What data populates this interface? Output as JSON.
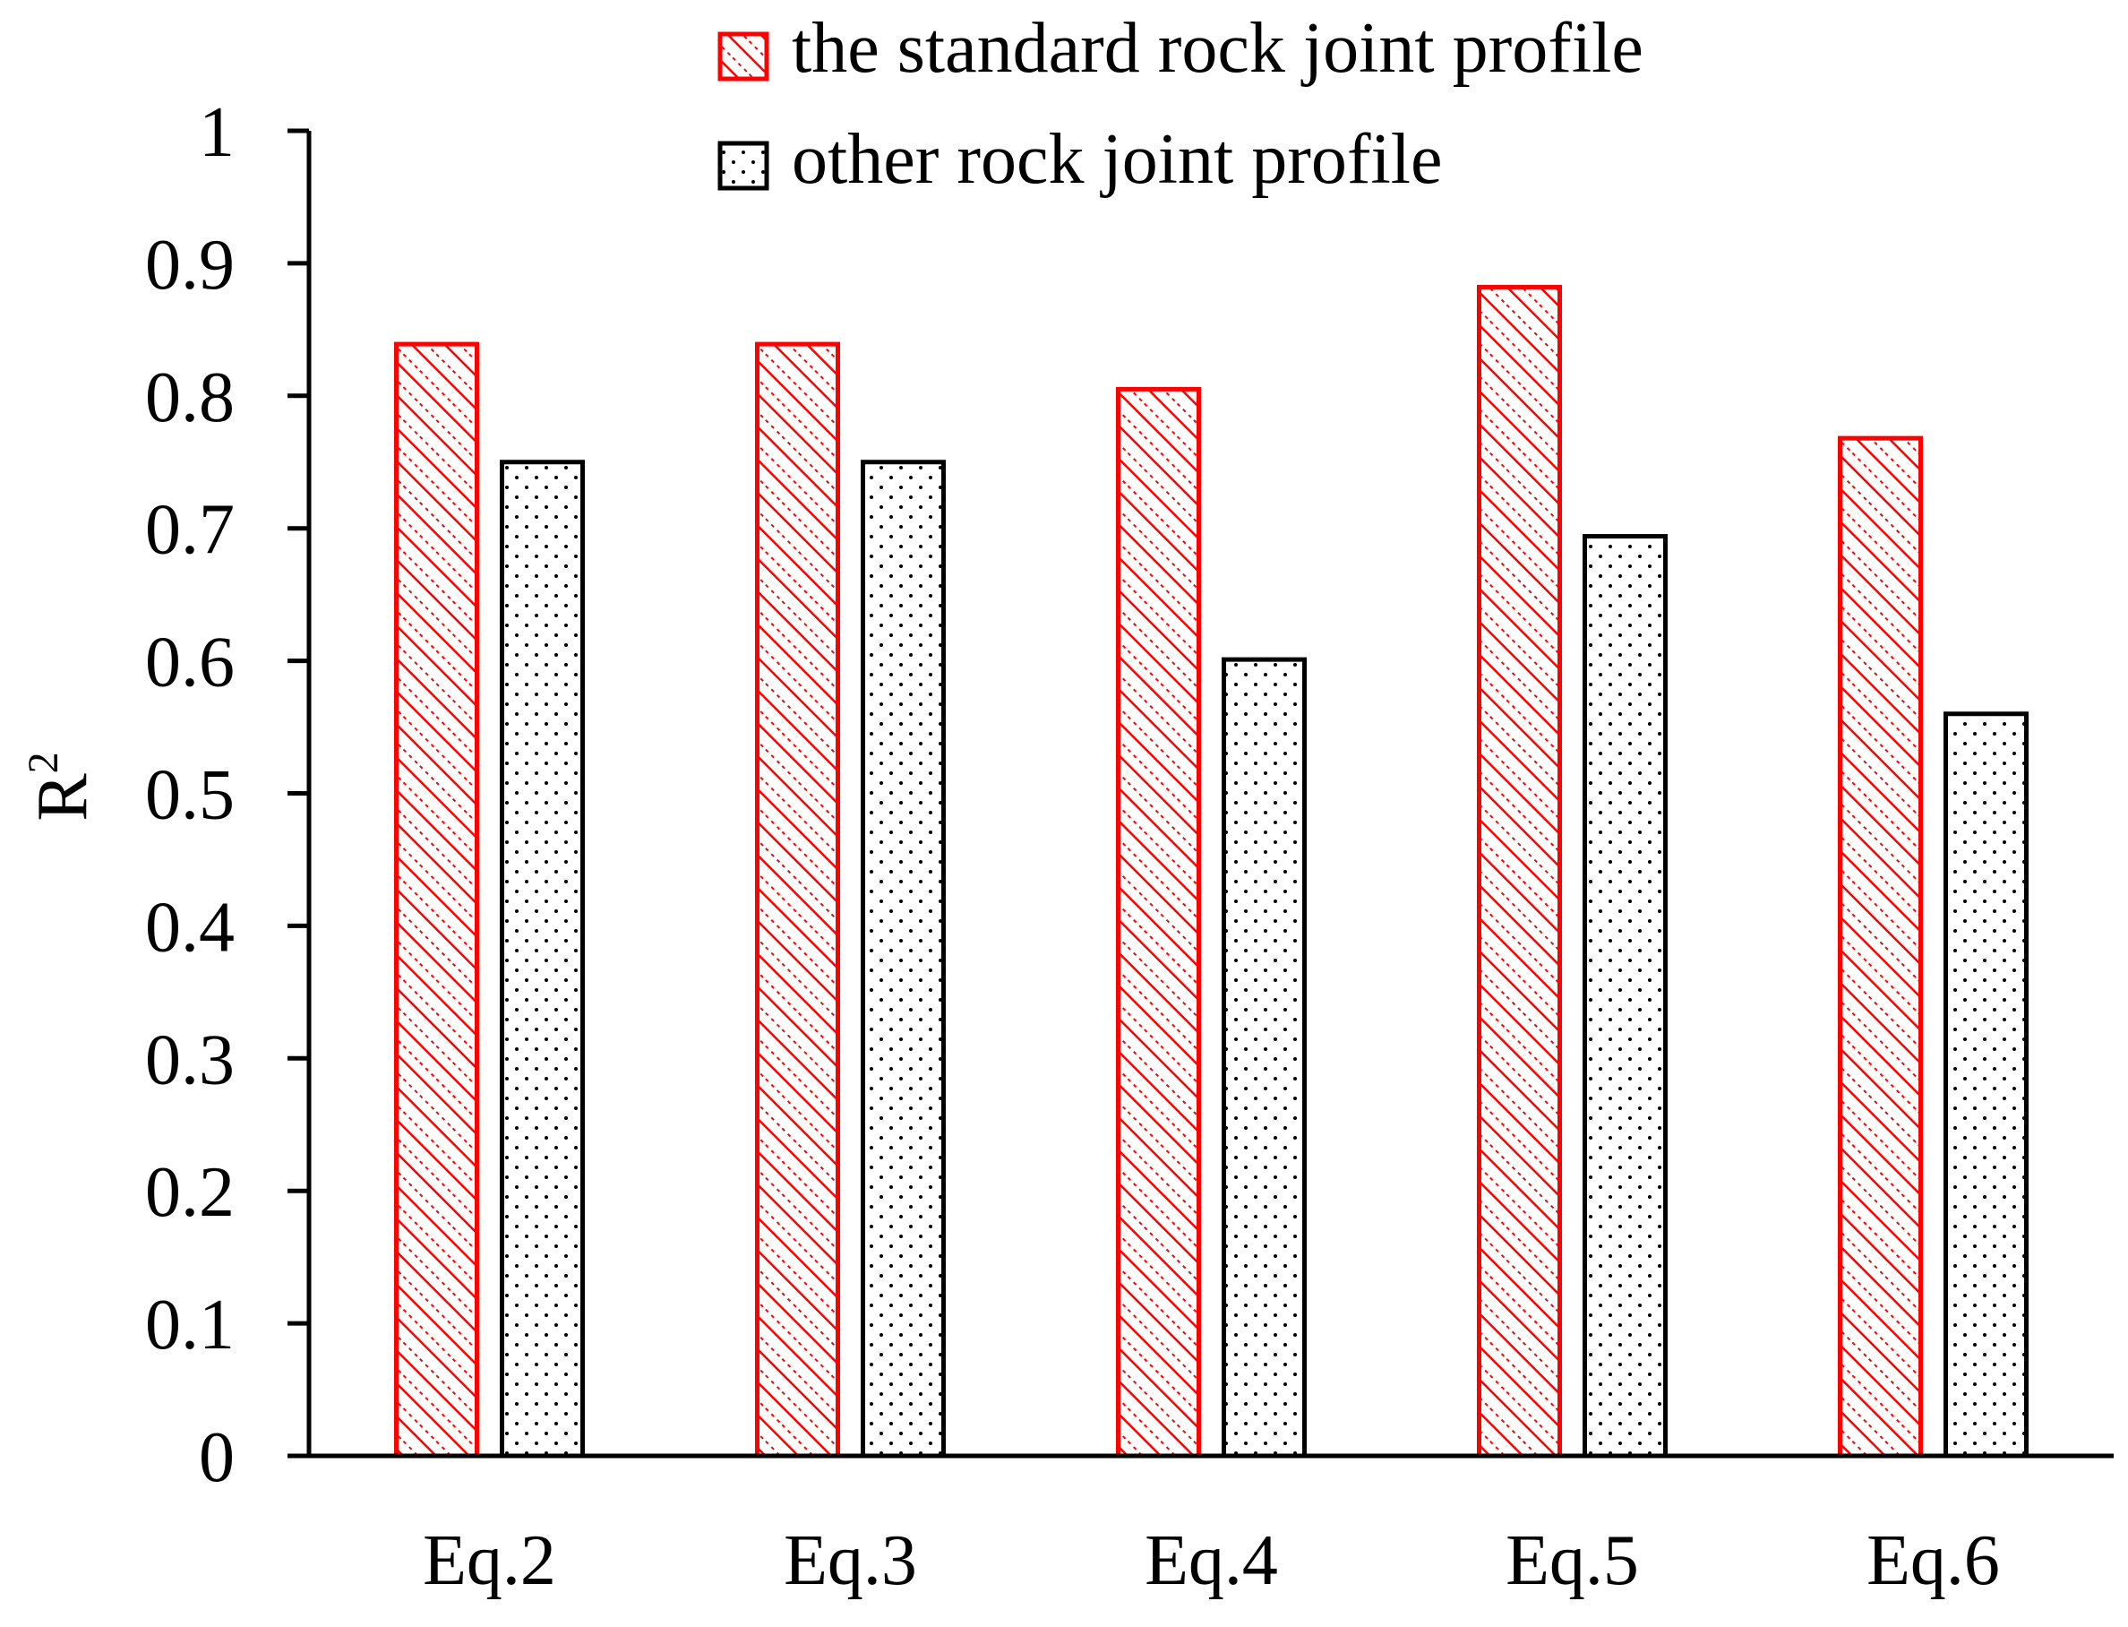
{
  "chart_data": {
    "type": "bar",
    "title": "",
    "xlabel": "",
    "ylabel": "R",
    "ylabel_superscript": "2",
    "ylim": [
      0,
      1
    ],
    "yticks": [
      "0",
      "0.1",
      "0.2",
      "0.3",
      "0.4",
      "0.5",
      "0.6",
      "0.7",
      "0.8",
      "0.9",
      "1"
    ],
    "categories": [
      "Eq.2",
      "Eq.3",
      "Eq.4",
      "Eq.5",
      "Eq.6"
    ],
    "series": [
      {
        "name": "the standard rock joint profile",
        "values": [
          0.839,
          0.839,
          0.805,
          0.882,
          0.768
        ],
        "color": "#ff0000",
        "pattern": "diagonal-hatch"
      },
      {
        "name": "other rock joint profile",
        "values": [
          0.75,
          0.75,
          0.601,
          0.694,
          0.56
        ],
        "color": "#000000",
        "pattern": "dots"
      }
    ],
    "legend_position": "top",
    "grid": false
  }
}
